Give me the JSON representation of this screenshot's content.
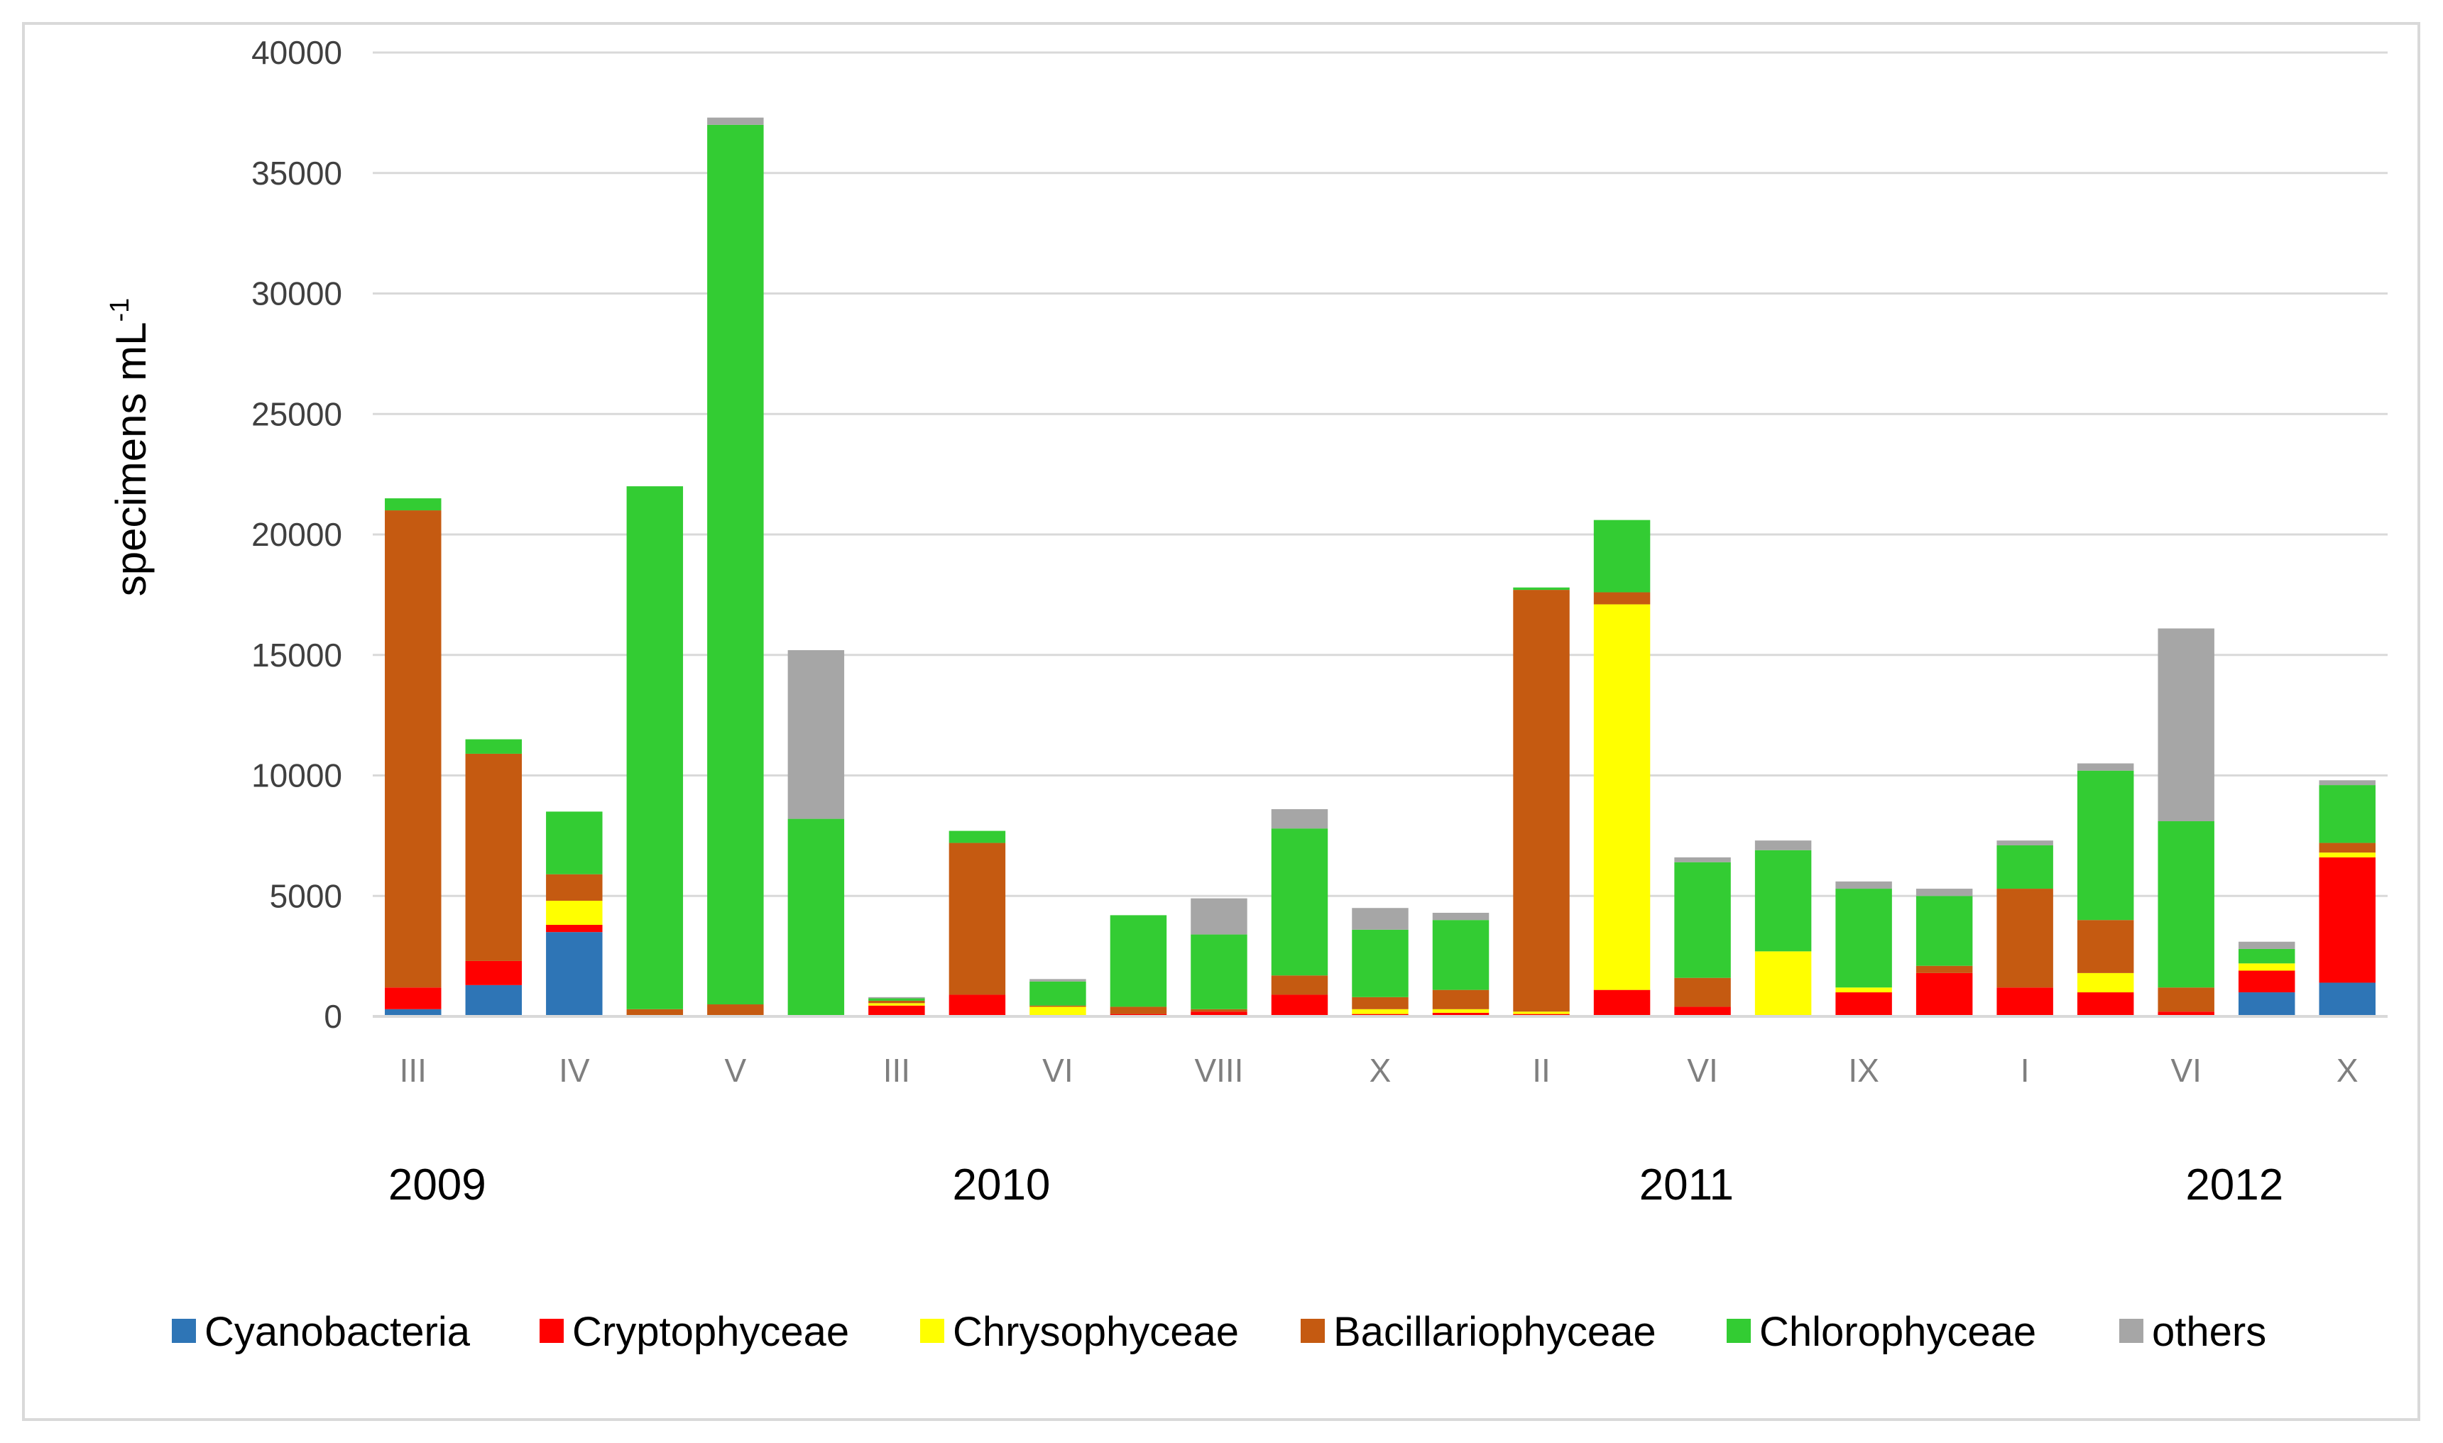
{
  "chart_data": {
    "type": "bar",
    "stacked": true,
    "ylabel": "specimens mL",
    "ylabel_superscript": "-1",
    "ylim": [
      0,
      40000
    ],
    "yticks": [
      0,
      5000,
      10000,
      15000,
      20000,
      25000,
      30000,
      35000,
      40000
    ],
    "grid": true,
    "legend_position": "bottom",
    "tick_labels": [
      {
        "index": 0,
        "label": "III"
      },
      {
        "index": 2,
        "label": "IV"
      },
      {
        "index": 4,
        "label": "V"
      },
      {
        "index": 6,
        "label": "III"
      },
      {
        "index": 8,
        "label": "VI"
      },
      {
        "index": 10,
        "label": "VIII"
      },
      {
        "index": 12,
        "label": "X"
      },
      {
        "index": 14,
        "label": "II"
      },
      {
        "index": 16,
        "label": "VI"
      },
      {
        "index": 18,
        "label": "IX"
      },
      {
        "index": 20,
        "label": "I"
      },
      {
        "index": 22,
        "label": "VI"
      },
      {
        "index": 24,
        "label": "X"
      }
    ],
    "year_labels": [
      {
        "label": "2009",
        "at_index": 0.3
      },
      {
        "label": "2010",
        "at_index": 7.3
      },
      {
        "label": "2011",
        "at_index": 15.8
      },
      {
        "label": "2012",
        "at_index": 22.6
      }
    ],
    "series": [
      {
        "name": "Cyanobacteria",
        "color": "#2e75b6",
        "values": [
          300,
          1300,
          3500,
          0,
          0,
          0,
          0,
          0,
          0,
          0,
          0,
          0,
          0,
          0,
          0,
          0,
          0,
          0,
          0,
          0,
          0,
          0,
          0,
          1000,
          1400
        ]
      },
      {
        "name": "Cryptophyceae",
        "color": "#ff0000",
        "values": [
          900,
          1000,
          300,
          0,
          0,
          0,
          450,
          900,
          0,
          100,
          200,
          900,
          100,
          150,
          100,
          1100,
          400,
          0,
          1000,
          1800,
          1200,
          1000,
          200,
          900,
          5200
        ]
      },
      {
        "name": "Chrysophyceae",
        "color": "#ffff00",
        "values": [
          0,
          0,
          1000,
          0,
          0,
          0,
          100,
          0,
          400,
          0,
          0,
          0,
          200,
          150,
          100,
          16000,
          0,
          2700,
          200,
          0,
          0,
          800,
          0,
          300,
          200
        ]
      },
      {
        "name": "Bacillariophyceae",
        "color": "#c55a11",
        "values": [
          19800,
          8600,
          1100,
          300,
          500,
          0,
          100,
          6300,
          50,
          300,
          100,
          800,
          500,
          800,
          17500,
          500,
          1200,
          0,
          0,
          300,
          4100,
          2200,
          1000,
          0,
          400
        ]
      },
      {
        "name": "Chlorophyceae",
        "color": "#33cc33",
        "values": [
          500,
          600,
          2600,
          21700,
          36500,
          8200,
          100,
          500,
          1000,
          3800,
          3100,
          6100,
          2800,
          2900,
          100,
          3000,
          4800,
          4200,
          4100,
          2900,
          1800,
          6200,
          6900,
          600,
          2400
        ]
      },
      {
        "name": "others",
        "color": "#a6a6a6",
        "values": [
          0,
          0,
          0,
          0,
          300,
          7000,
          50,
          0,
          100,
          0,
          1500,
          800,
          900,
          300,
          0,
          0,
          200,
          400,
          300,
          300,
          200,
          300,
          8000,
          300,
          200
        ]
      }
    ]
  }
}
